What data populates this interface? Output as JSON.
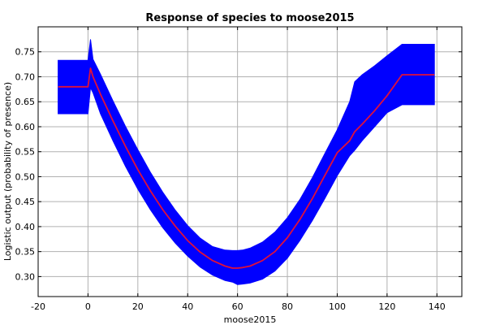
{
  "chart_data": {
    "type": "area",
    "title": "Response of species to moose2015",
    "xlabel": "moose2015",
    "ylabel": "Logistic output (probability of presence)",
    "xlim": [
      -20,
      150
    ],
    "ylim": [
      0.26,
      0.8
    ],
    "x_ticks": [
      -20,
      0,
      20,
      40,
      60,
      80,
      100,
      120,
      140
    ],
    "x_tick_labels": [
      "-20",
      "0",
      "20",
      "40",
      "60",
      "80",
      "100",
      "120",
      "140"
    ],
    "y_ticks": [
      0.3,
      0.35,
      0.4,
      0.45,
      0.5,
      0.55,
      0.6,
      0.65,
      0.7,
      0.75
    ],
    "y_tick_labels": [
      "0.30",
      "0.35",
      "0.40",
      "0.45",
      "0.50",
      "0.55",
      "0.60",
      "0.65",
      "0.70",
      "0.75"
    ],
    "grid": true,
    "colors": {
      "band": "#0000ff",
      "line": "#e0103a"
    },
    "series": [
      {
        "role": "mean",
        "x": [
          -12,
          0,
          1,
          2,
          5,
          10,
          15,
          20,
          25,
          30,
          35,
          40,
          45,
          50,
          55,
          58,
          60,
          62,
          65,
          70,
          75,
          80,
          85,
          90,
          95,
          100,
          105,
          107,
          110,
          115,
          120,
          126,
          139
        ],
        "y": [
          0.68,
          0.68,
          0.717,
          0.7,
          0.665,
          0.612,
          0.561,
          0.514,
          0.472,
          0.434,
          0.401,
          0.372,
          0.349,
          0.332,
          0.321,
          0.317,
          0.317,
          0.318,
          0.321,
          0.332,
          0.35,
          0.378,
          0.414,
          0.456,
          0.502,
          0.548,
          0.572,
          0.59,
          0.605,
          0.632,
          0.662,
          0.704,
          0.704
        ]
      },
      {
        "role": "upper",
        "x": [
          -12,
          0,
          1,
          2,
          5,
          10,
          15,
          20,
          25,
          30,
          35,
          40,
          45,
          50,
          55,
          58,
          60,
          62,
          65,
          70,
          75,
          80,
          85,
          90,
          95,
          100,
          105,
          107,
          110,
          115,
          120,
          126,
          139
        ],
        "y": [
          0.733,
          0.733,
          0.775,
          0.735,
          0.705,
          0.652,
          0.601,
          0.554,
          0.509,
          0.469,
          0.433,
          0.402,
          0.377,
          0.36,
          0.353,
          0.352,
          0.352,
          0.353,
          0.357,
          0.369,
          0.389,
          0.418,
          0.454,
          0.498,
          0.546,
          0.594,
          0.65,
          0.69,
          0.704,
          0.722,
          0.742,
          0.765,
          0.765
        ]
      },
      {
        "role": "lower",
        "x": [
          -12,
          0,
          1,
          2,
          5,
          10,
          15,
          20,
          25,
          30,
          35,
          40,
          45,
          50,
          55,
          58,
          60,
          62,
          65,
          70,
          75,
          80,
          85,
          90,
          95,
          100,
          105,
          107,
          110,
          115,
          120,
          126,
          139
        ],
        "y": [
          0.626,
          0.626,
          0.678,
          0.668,
          0.626,
          0.572,
          0.521,
          0.475,
          0.434,
          0.398,
          0.367,
          0.341,
          0.319,
          0.303,
          0.292,
          0.289,
          0.284,
          0.285,
          0.287,
          0.295,
          0.311,
          0.337,
          0.372,
          0.412,
          0.456,
          0.502,
          0.542,
          0.553,
          0.572,
          0.6,
          0.628,
          0.644,
          0.644
        ]
      }
    ]
  }
}
